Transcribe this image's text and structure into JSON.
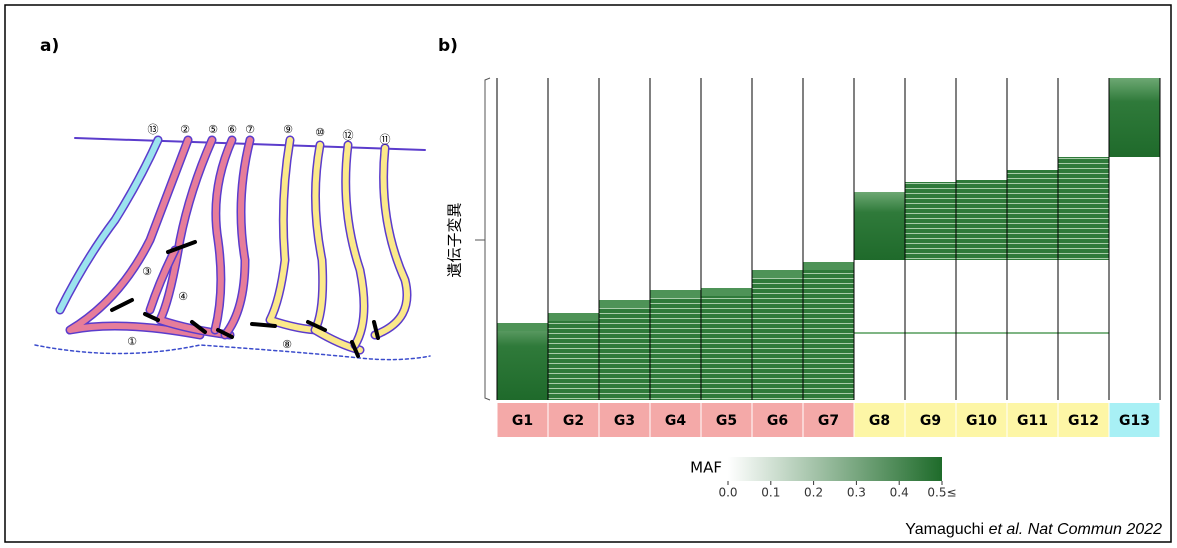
{
  "panel_a": {
    "label": "a)",
    "markers": [
      "⑬",
      "②",
      "⑤",
      "⑥",
      "⑦",
      "⑨",
      "⑩",
      "⑫",
      "⑪",
      "③",
      "④",
      "①",
      "⑧"
    ]
  },
  "panel_b": {
    "label": "b)",
    "y_label": "遺伝子変異",
    "groups": [
      {
        "label": "G1",
        "color": "#f4a9a8"
      },
      {
        "label": "G2",
        "color": "#f4a9a8"
      },
      {
        "label": "G3",
        "color": "#f4a9a8"
      },
      {
        "label": "G4",
        "color": "#f4a9a8"
      },
      {
        "label": "G5",
        "color": "#f4a9a8"
      },
      {
        "label": "G6",
        "color": "#f4a9a8"
      },
      {
        "label": "G7",
        "color": "#f4a9a8"
      },
      {
        "label": "G8",
        "color": "#fdf6a6"
      },
      {
        "label": "G9",
        "color": "#fdf6a6"
      },
      {
        "label": "G10",
        "color": "#fdf6a6"
      },
      {
        "label": "G11",
        "color": "#fdf6a6"
      },
      {
        "label": "G12",
        "color": "#fdf6a6"
      },
      {
        "label": "G13",
        "color": "#a8f0f5"
      }
    ],
    "colorbar": {
      "title": "MAF",
      "lim": [
        0,
        0.5
      ],
      "ticks": [
        {
          "value": 0,
          "label": "0.0"
        },
        0.1,
        0.2,
        0.3,
        0.4,
        {
          "value": 0.5,
          "label": "0.5≤"
        }
      ]
    }
  },
  "citation": {
    "author": "Yamaguchi",
    "etal": "et al.",
    "journal": "Nat Commun 2022"
  }
}
